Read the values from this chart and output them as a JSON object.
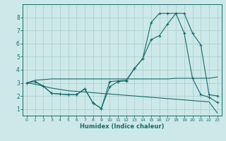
{
  "xlabel": "Humidex (Indice chaleur)",
  "bg_color": "#cce8e8",
  "grid_color": "#aacccc",
  "line_color": "#1a6b6b",
  "xlim": [
    -0.5,
    23.5
  ],
  "ylim": [
    0.5,
    9.0
  ],
  "xticks": [
    0,
    1,
    2,
    3,
    4,
    5,
    6,
    7,
    8,
    9,
    10,
    11,
    12,
    13,
    14,
    15,
    16,
    17,
    18,
    19,
    20,
    21,
    22,
    23
  ],
  "yticks": [
    1,
    2,
    3,
    4,
    5,
    6,
    7,
    8
  ],
  "curve1_x": [
    0,
    1,
    2,
    3,
    4,
    5,
    6,
    7,
    8,
    9,
    10,
    11,
    12,
    13,
    14,
    15,
    16,
    17,
    18,
    19,
    20,
    21,
    22,
    23
  ],
  "curve1_y": [
    3.0,
    3.2,
    3.25,
    3.3,
    3.3,
    3.3,
    3.3,
    3.3,
    3.3,
    3.3,
    3.3,
    3.3,
    3.3,
    3.3,
    3.3,
    3.3,
    3.3,
    3.3,
    3.35,
    3.35,
    3.35,
    3.35,
    3.35,
    3.45
  ],
  "curve2_x": [
    0,
    1,
    2,
    3,
    4,
    5,
    6,
    7,
    8,
    9,
    10,
    11,
    12,
    13,
    14,
    15,
    16,
    17,
    18,
    19,
    20,
    21,
    22,
    23
  ],
  "curve2_y": [
    3.0,
    3.1,
    2.75,
    2.2,
    2.15,
    2.1,
    2.1,
    2.55,
    1.45,
    1.05,
    2.7,
    3.1,
    3.15,
    4.1,
    4.85,
    6.3,
    6.6,
    7.5,
    8.3,
    8.3,
    6.8,
    5.9,
    2.1,
    2.0
  ],
  "curve3_x": [
    0,
    1,
    2,
    3,
    4,
    5,
    6,
    7,
    8,
    9,
    10,
    11,
    12,
    13,
    14,
    15,
    16,
    17,
    18,
    19,
    20,
    21,
    22,
    23
  ],
  "curve3_y": [
    3.0,
    2.9,
    2.75,
    2.6,
    2.5,
    2.4,
    2.35,
    2.3,
    2.25,
    2.2,
    2.15,
    2.1,
    2.05,
    2.0,
    1.95,
    1.9,
    1.85,
    1.8,
    1.75,
    1.7,
    1.65,
    1.6,
    1.55,
    0.7
  ],
  "curve4_x": [
    1,
    2,
    3,
    4,
    5,
    6,
    7,
    8,
    9,
    10,
    11,
    12,
    13,
    14,
    15,
    16,
    17,
    18,
    19,
    20,
    21,
    22,
    23
  ],
  "curve4_y": [
    3.1,
    2.75,
    2.2,
    2.15,
    2.1,
    2.1,
    2.55,
    1.45,
    1.05,
    3.1,
    3.15,
    3.2,
    4.1,
    4.85,
    7.6,
    8.3,
    8.3,
    8.3,
    6.8,
    3.35,
    2.1,
    1.9,
    1.5
  ],
  "marker": "+"
}
